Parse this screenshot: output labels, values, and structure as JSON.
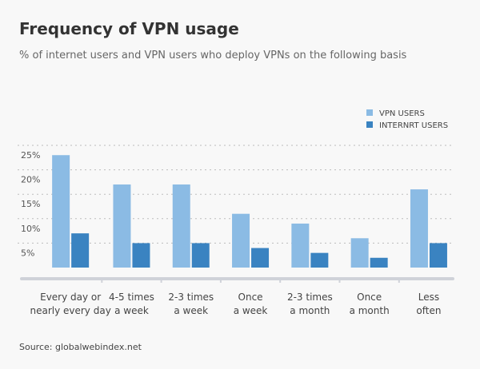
{
  "chart_data": {
    "type": "bar",
    "title": "Frequency of VPN usage",
    "subtitle": "% of internet users and VPN users who deploy VPNs on the following basis",
    "categories": [
      [
        "Every day or",
        "nearly every day"
      ],
      [
        "4-5 times",
        "a week"
      ],
      [
        "2-3 times",
        "a week"
      ],
      [
        "Once",
        "a week"
      ],
      [
        "2-3 times",
        "a month"
      ],
      [
        "Once",
        "a month"
      ],
      [
        "Less",
        "often"
      ]
    ],
    "series": [
      {
        "name": "VPN USERS",
        "color": "#8bbbe4",
        "values": [
          23,
          17,
          17,
          11,
          9,
          6,
          16
        ]
      },
      {
        "name": "INTERNRT USERS",
        "color": "#3a83c1",
        "values": [
          7,
          5,
          5,
          4,
          3,
          2,
          5
        ]
      }
    ],
    "yticks": [
      5,
      10,
      15,
      20,
      25
    ],
    "ytick_labels": [
      "5%",
      "10%",
      "15%",
      "20%",
      "25%"
    ],
    "ylim": [
      0,
      25
    ],
    "grid": true,
    "legend": "top-right",
    "source": "Source: globalwebindex.net"
  }
}
